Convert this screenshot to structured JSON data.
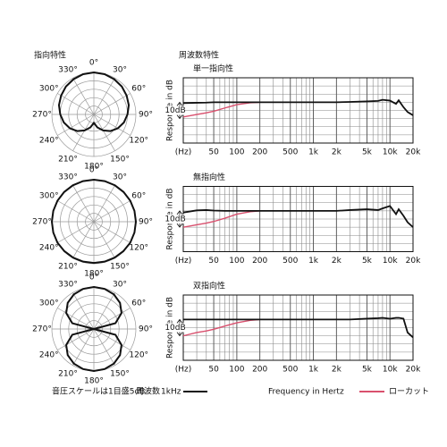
{
  "headings": {
    "polar": "指向特性",
    "frequency": "周波数特性"
  },
  "footer": {
    "scale_note": "音圧スケールは1目盛5dB",
    "freq_label": "周波数",
    "xlabel": "Frequency in Hertz"
  },
  "chart_data": [
    {
      "type": "polar",
      "color": "#111111",
      "rlim": [
        -25,
        0
      ],
      "rticks": [
        -25,
        -20,
        -15,
        -10,
        -5,
        0
      ],
      "angle_ticks": [
        {
          "value": 0,
          "label": "0°"
        },
        {
          "value": 30,
          "label": "30°"
        },
        {
          "value": 60,
          "label": "60°"
        },
        {
          "value": 90,
          "label": "90°"
        },
        {
          "value": 120,
          "label": "120°"
        },
        {
          "value": 150,
          "label": "150°"
        },
        {
          "value": 180,
          "label": "180°"
        },
        {
          "value": 210,
          "label": "210°"
        },
        {
          "value": 240,
          "label": "240°"
        },
        {
          "value": 270,
          "label": "270°"
        },
        {
          "value": 300,
          "label": "300°"
        },
        {
          "value": 330,
          "label": "330°"
        }
      ],
      "angles": [
        0,
        15,
        30,
        45,
        60,
        75,
        90,
        105,
        120,
        135,
        150,
        165,
        180,
        195,
        210,
        225,
        240,
        255,
        270,
        285,
        300,
        315,
        330,
        345
      ],
      "values": [
        0,
        -0.2,
        -0.8,
        -1.5,
        -2.5,
        -3.5,
        -5,
        -6.5,
        -8.5,
        -11,
        -14,
        -17,
        -20,
        -17,
        -14,
        -11,
        -8.5,
        -6.5,
        -5,
        -3.5,
        -2.5,
        -1.5,
        -0.8,
        -0.2
      ]
    },
    {
      "type": "line",
      "title": "単一指向性",
      "ylabel": "Response in dB",
      "scale": {
        "value": 10,
        "label": "10dB"
      },
      "xscale": "log",
      "xlim": [
        20,
        20000
      ],
      "ylim": [
        -25,
        15
      ],
      "yticks": [
        -25,
        -20,
        -15,
        -10,
        -5,
        0,
        5,
        10,
        15
      ],
      "xticks": [
        {
          "value": 20,
          "label": "(Hz)"
        },
        50,
        100,
        200,
        500,
        {
          "value": 1000,
          "label": "1k"
        },
        {
          "value": 2000,
          "label": "2k"
        },
        {
          "value": 5000,
          "label": "5k"
        },
        {
          "value": 10000,
          "label": "10k"
        },
        {
          "value": 20000,
          "label": "20k"
        }
      ],
      "x": [
        20,
        30,
        40,
        50,
        70,
        100,
        150,
        200,
        500,
        1000,
        2000,
        3000,
        5000,
        7000,
        8000,
        10000,
        12000,
        13000,
        15000,
        17000,
        20000
      ],
      "series": [
        {
          "name": "1kHz",
          "color": "#111111",
          "values": [
            -0.5,
            -0.3,
            -0.2,
            0,
            0,
            0,
            0,
            0,
            0,
            0,
            0,
            0.2,
            0.5,
            0.8,
            1.5,
            1,
            -1,
            1.2,
            -3,
            -6,
            -8
          ]
        },
        {
          "name": "ローカット",
          "color": "#d9506e",
          "values": [
            -9,
            -7.5,
            -6.5,
            -5.5,
            -3.5,
            -1.5,
            -0.3,
            0,
            null,
            null,
            null,
            null,
            null,
            null,
            null,
            null,
            null,
            null,
            null,
            null,
            null
          ]
        }
      ]
    },
    {
      "type": "polar",
      "color": "#111111",
      "rlim": [
        -25,
        0
      ],
      "rticks": [
        -25,
        -20,
        -15,
        -10,
        -5,
        0
      ],
      "angle_ticks": [
        {
          "value": 0,
          "label": "0°"
        },
        {
          "value": 30,
          "label": "30°"
        },
        {
          "value": 60,
          "label": "60°"
        },
        {
          "value": 90,
          "label": "90°"
        },
        {
          "value": 120,
          "label": "120°"
        },
        {
          "value": 150,
          "label": "150°"
        },
        {
          "value": 180,
          "label": "180°"
        },
        {
          "value": 210,
          "label": "210°"
        },
        {
          "value": 240,
          "label": "240°"
        },
        {
          "value": 270,
          "label": "270°"
        },
        {
          "value": 300,
          "label": "300°"
        },
        {
          "value": 330,
          "label": "330°"
        }
      ],
      "angles": [
        0,
        15,
        30,
        45,
        60,
        75,
        90,
        105,
        120,
        135,
        150,
        165,
        180,
        195,
        210,
        225,
        240,
        255,
        270,
        285,
        300,
        315,
        330,
        345
      ],
      "values": [
        0,
        0,
        0,
        0,
        0,
        0,
        0,
        0,
        0,
        -0.2,
        -0.3,
        -0.4,
        -0.5,
        -0.4,
        -0.3,
        -0.2,
        0,
        0,
        0,
        0,
        0,
        0,
        0,
        0
      ]
    },
    {
      "type": "line",
      "title": "無指向性",
      "ylabel": "Response in dB",
      "scale": {
        "value": 10,
        "label": "10dB"
      },
      "xscale": "log",
      "xlim": [
        20,
        20000
      ],
      "ylim": [
        -25,
        15
      ],
      "yticks": [
        -25,
        -20,
        -15,
        -10,
        -5,
        0,
        5,
        10,
        15
      ],
      "xticks": [
        {
          "value": 20,
          "label": "(Hz)"
        },
        50,
        100,
        200,
        500,
        {
          "value": 1000,
          "label": "1k"
        },
        {
          "value": 2000,
          "label": "2k"
        },
        {
          "value": 5000,
          "label": "5k"
        },
        {
          "value": 10000,
          "label": "10k"
        },
        {
          "value": 20000,
          "label": "20k"
        }
      ],
      "x": [
        20,
        30,
        40,
        50,
        70,
        100,
        150,
        200,
        500,
        1000,
        2000,
        3000,
        5000,
        7000,
        8000,
        10000,
        12000,
        13000,
        15000,
        17000,
        20000
      ],
      "series": [
        {
          "name": "1kHz",
          "color": "#111111",
          "values": [
            -1,
            0.3,
            0.5,
            0.2,
            0,
            0,
            0,
            0,
            0,
            0,
            0,
            0.5,
            1,
            0.5,
            1.5,
            3,
            -2,
            1,
            -3,
            -7,
            -10
          ]
        },
        {
          "name": "ローカット",
          "color": "#d9506e",
          "values": [
            -10,
            -8.5,
            -7.5,
            -6.5,
            -4.5,
            -2,
            -0.5,
            0,
            null,
            null,
            null,
            null,
            null,
            null,
            null,
            null,
            null,
            null,
            null,
            null,
            null
          ]
        }
      ]
    },
    {
      "type": "polar",
      "color": "#111111",
      "rlim": [
        -25,
        0
      ],
      "rticks": [
        -25,
        -20,
        -15,
        -10,
        -5,
        0
      ],
      "angle_ticks": [
        {
          "value": 0,
          "label": "0°"
        },
        {
          "value": 30,
          "label": "30°"
        },
        {
          "value": 60,
          "label": "60°"
        },
        {
          "value": 90,
          "label": "90°"
        },
        {
          "value": 120,
          "label": "120°"
        },
        {
          "value": 150,
          "label": "150°"
        },
        {
          "value": 180,
          "label": "180°"
        },
        {
          "value": 210,
          "label": "210°"
        },
        {
          "value": 240,
          "label": "240°"
        },
        {
          "value": 270,
          "label": "270°"
        },
        {
          "value": 300,
          "label": "300°"
        },
        {
          "value": 330,
          "label": "330°"
        }
      ],
      "angles": [
        0,
        15,
        30,
        45,
        60,
        75,
        90,
        105,
        120,
        135,
        150,
        165,
        180,
        195,
        210,
        225,
        240,
        255,
        270,
        285,
        300,
        315,
        330,
        345
      ],
      "values": [
        0,
        -0.3,
        -1.2,
        -3,
        -6,
        -11.7,
        -25,
        -11.7,
        -6,
        -3,
        -1.2,
        -0.3,
        0,
        -0.3,
        -1.2,
        -3,
        -6,
        -11.7,
        -25,
        -11.7,
        -6,
        -3,
        -1.2,
        -0.3
      ]
    },
    {
      "type": "line",
      "title": "双指向性",
      "ylabel": "Response in dB",
      "scale": {
        "value": 10,
        "label": "10dB"
      },
      "xscale": "log",
      "xlim": [
        20,
        20000
      ],
      "ylim": [
        -25,
        15
      ],
      "yticks": [
        -25,
        -20,
        -15,
        -10,
        -5,
        0,
        5,
        10,
        15
      ],
      "xticks": [
        {
          "value": 20,
          "label": "(Hz)"
        },
        50,
        100,
        200,
        500,
        {
          "value": 1000,
          "label": "1k"
        },
        {
          "value": 2000,
          "label": "2k"
        },
        {
          "value": 5000,
          "label": "5k"
        },
        {
          "value": 10000,
          "label": "10k"
        },
        {
          "value": 20000,
          "label": "20k"
        }
      ],
      "x": [
        20,
        30,
        40,
        50,
        70,
        100,
        150,
        200,
        500,
        1000,
        2000,
        3000,
        5000,
        7000,
        8000,
        10000,
        12000,
        13000,
        15000,
        17000,
        20000
      ],
      "series": [
        {
          "name": "1kHz",
          "color": "#111111",
          "values": [
            0,
            0,
            0,
            0,
            0,
            0,
            0,
            0,
            0,
            0,
            0,
            0,
            0.5,
            0.8,
            1,
            0.5,
            1,
            1,
            0.5,
            -8,
            -11
          ]
        },
        {
          "name": "ローカット",
          "color": "#d9506e",
          "values": [
            -10,
            -8,
            -7,
            -6,
            -4,
            -2,
            -0.5,
            0,
            null,
            null,
            null,
            null,
            null,
            null,
            null,
            null,
            null,
            null,
            null,
            null,
            null
          ]
        }
      ]
    }
  ]
}
